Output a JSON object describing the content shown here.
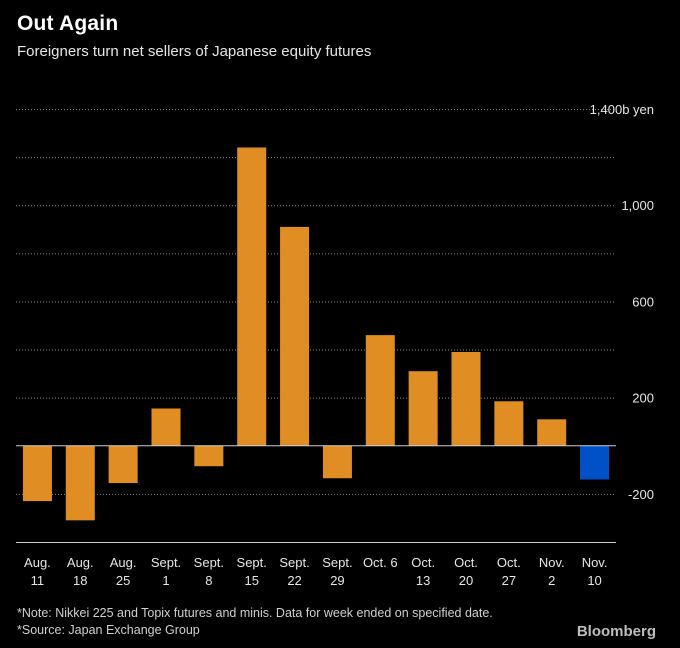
{
  "header": {
    "title": "Out Again",
    "subtitle": "Foreigners turn net sellers of Japanese equity futures"
  },
  "footer": {
    "note": "*Note: Nikkei 225 and Topix futures and minis. Data for week ended on specified date.",
    "source": "*Source: Japan Exchange Group",
    "brand": "Bloomberg"
  },
  "colors": {
    "positive": "#E08E23",
    "negative": "#0050C8",
    "background": "#000000",
    "gridline": "#888888",
    "text": "#FFFFFF"
  },
  "chart_data": {
    "type": "bar",
    "title": "Out Again",
    "subtitle": "Foreigners turn net sellers of Japanese equity futures",
    "unit_label": "1,400b yen",
    "ylabel": "billion yen",
    "xlabel": "",
    "ylim": [
      -400,
      1400
    ],
    "yticks": [
      1400,
      1000,
      600,
      200,
      -200
    ],
    "ytick_labels": [
      "1,400b yen",
      "1,000",
      "600",
      "200",
      "-200"
    ],
    "categories": [
      [
        "Aug.",
        "11"
      ],
      [
        "Aug.",
        "18"
      ],
      [
        "Aug.",
        "25"
      ],
      [
        "Sept.",
        "1"
      ],
      [
        "Sept.",
        "8"
      ],
      [
        "Sept.",
        "15"
      ],
      [
        "Sept.",
        "22"
      ],
      [
        "Sept.",
        "29"
      ],
      [
        "Oct. 6",
        ""
      ],
      [
        "Oct.",
        "13"
      ],
      [
        "Oct.",
        "20"
      ],
      [
        "Oct.",
        "27"
      ],
      [
        "Nov.",
        "2"
      ],
      [
        "Nov.",
        "10"
      ]
    ],
    "values": [
      -230,
      -310,
      -155,
      155,
      -85,
      1240,
      910,
      -135,
      460,
      310,
      390,
      185,
      110,
      -140
    ],
    "highlight_index": 13,
    "grid": true,
    "grid_style": "dotted",
    "zero_line": true,
    "axis_position": "right"
  }
}
